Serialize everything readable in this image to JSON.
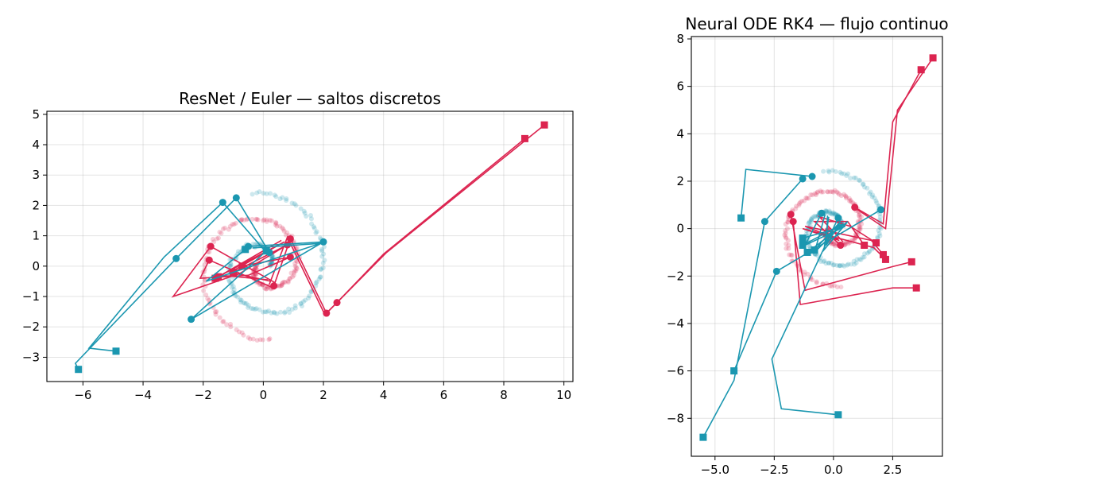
{
  "colors": {
    "class_a": "#1b97b0",
    "class_b": "#dc2450"
  },
  "chart_data": [
    {
      "type": "line",
      "title": "ResNet / Euler — saltos discretos",
      "xlabel": "",
      "ylabel": "",
      "xlim": [
        -7.2,
        10.3
      ],
      "ylim": [
        -3.8,
        5.1
      ],
      "xticks": [
        -6,
        -4,
        -2,
        0,
        2,
        4,
        6,
        8,
        10
      ],
      "xtick_labels": [
        "−6",
        "−4",
        "−2",
        "0",
        "2",
        "4",
        "6",
        "8",
        "10"
      ],
      "yticks": [
        -3,
        -2,
        -1,
        0,
        1,
        2,
        3,
        4,
        5
      ],
      "ytick_labels": [
        "−3",
        "−2",
        "−1",
        "0",
        "1",
        "2",
        "3",
        "4",
        "5"
      ],
      "grid": true,
      "spirals": [
        {
          "color": "class_a",
          "r0": 0.2,
          "r1": 2.45,
          "theta0": 0.0,
          "theta1": 8.0,
          "n": 170
        },
        {
          "color": "class_b",
          "r0": 0.2,
          "r1": 2.45,
          "theta0": 3.1416,
          "theta1": 11.1,
          "n": 170
        }
      ],
      "trajectories": [
        {
          "color": "class_b",
          "points": [
            [
              0.35,
              -0.65
            ],
            [
              0.9,
              0.9
            ],
            [
              2.1,
              -1.55
            ],
            [
              2.45,
              -1.2
            ],
            [
              4,
              0.4
            ],
            [
              8.7,
              4.2
            ]
          ],
          "markers": [
            [
              0.35,
              -0.65
            ],
            [
              0.9,
              0.9
            ],
            [
              2.1,
              -1.55
            ],
            [
              2.45,
              -1.2
            ],
            [
              8.7,
              4.2
            ]
          ]
        },
        {
          "color": "class_b",
          "points": [
            [
              0.2,
              -0.6
            ],
            [
              0.8,
              0.95
            ],
            [
              2.05,
              -1.6
            ],
            [
              2.4,
              -1.25
            ],
            [
              4.1,
              0.45
            ],
            [
              9.35,
              4.65
            ]
          ],
          "markers": [
            [
              9.35,
              4.65
            ]
          ]
        },
        {
          "color": "class_b",
          "points": [
            [
              0.3,
              -0.7
            ],
            [
              -1.8,
              0.2
            ],
            [
              -2.1,
              -0.4
            ],
            [
              -0.5,
              -0.3
            ],
            [
              0.9,
              0.3
            ],
            [
              -0.7,
              0
            ]
          ],
          "markers": [
            [
              -1.8,
              0.2
            ],
            [
              0.9,
              0.3
            ],
            [
              -0.7,
              0
            ]
          ]
        },
        {
          "color": "class_b",
          "points": [
            [
              0.4,
              -0.55
            ],
            [
              -1.75,
              0.65
            ],
            [
              -3,
              -1
            ],
            [
              -0.8,
              -0.25
            ],
            [
              0.8,
              0.7
            ],
            [
              -1,
              -0.2
            ]
          ],
          "markers": [
            [
              -1.75,
              0.65
            ],
            [
              0.8,
              0.7
            ],
            [
              -1,
              -0.2
            ]
          ]
        },
        {
          "color": "class_b",
          "points": [
            [
              0.15,
              -0.45
            ],
            [
              -1.4,
              -0.3
            ],
            [
              0.6,
              0.85
            ],
            [
              -1.5,
              -0.35
            ]
          ],
          "markers": [
            [
              -1.5,
              -0.35
            ]
          ]
        },
        {
          "color": "class_b",
          "points": [
            [
              0.25,
              -0.5
            ],
            [
              -1.1,
              -0.2
            ],
            [
              0.7,
              0.8
            ],
            [
              -1.6,
              -0.4
            ]
          ],
          "markers": [
            [
              -1.6,
              -0.4
            ]
          ]
        },
        {
          "color": "class_a",
          "points": [
            [
              0.2,
              0.45
            ],
            [
              -0.9,
              2.25
            ],
            [
              -2.9,
              0.25
            ],
            [
              -6.25,
              -3.2
            ],
            [
              -6.15,
              -3.4
            ]
          ],
          "markers": [
            [
              0.2,
              0.45
            ],
            [
              -0.9,
              2.25
            ],
            [
              -2.9,
              0.25
            ],
            [
              -6.15,
              -3.4
            ]
          ]
        },
        {
          "color": "class_a",
          "points": [
            [
              0.15,
              0.4
            ],
            [
              -1.35,
              2.1
            ],
            [
              -3.3,
              0.3
            ],
            [
              -5.8,
              -2.7
            ],
            [
              -4.9,
              -2.8
            ]
          ],
          "markers": [
            [
              -1.35,
              2.1
            ],
            [
              -4.9,
              -2.8
            ]
          ]
        },
        {
          "color": "class_a",
          "points": [
            [
              -0.5,
              0.65
            ],
            [
              2,
              0.8
            ],
            [
              -2.4,
              -1.75
            ],
            [
              0.1,
              0.5
            ]
          ],
          "markers": [
            [
              -0.5,
              0.65
            ],
            [
              2,
              0.8
            ],
            [
              -2.4,
              -1.75
            ],
            [
              0.1,
              0.5
            ]
          ]
        },
        {
          "color": "class_a",
          "points": [
            [
              -0.35,
              0.6
            ],
            [
              1.9,
              0.75
            ],
            [
              -1.9,
              -0.5
            ],
            [
              -0.6,
              0.55
            ]
          ],
          "markers": [
            [
              -0.6,
              0.55
            ]
          ]
        }
      ]
    },
    {
      "type": "line",
      "title": "Neural ODE RK4 — flujo continuo",
      "xlabel": "",
      "ylabel": "",
      "xlim": [
        -6.0,
        4.6
      ],
      "ylim": [
        -9.6,
        8.1
      ],
      "xticks": [
        -5,
        -2.5,
        0,
        2.5
      ],
      "xtick_labels": [
        "−5.0",
        "−2.5",
        "0.0",
        "2.5"
      ],
      "yticks": [
        -8,
        -6,
        -4,
        -2,
        0,
        2,
        4,
        6,
        8
      ],
      "ytick_labels": [
        "−8",
        "−6",
        "−4",
        "−2",
        "0",
        "2",
        "4",
        "6",
        "8"
      ],
      "grid": true,
      "spirals": [
        {
          "color": "class_a",
          "r0": 0.2,
          "r1": 2.45,
          "theta0": 0.0,
          "theta1": 8.0,
          "n": 170
        },
        {
          "color": "class_b",
          "r0": 0.2,
          "r1": 2.45,
          "theta0": 3.1416,
          "theta1": 11.1,
          "n": 170
        }
      ],
      "trajectories": [
        {
          "color": "class_b",
          "points": [
            [
              0.9,
              0.9
            ],
            [
              2.1,
              0.2
            ],
            [
              2.5,
              4.5
            ],
            [
              3.7,
              6.7
            ]
          ],
          "markers": [
            [
              0.9,
              0.9
            ],
            [
              3.7,
              6.7
            ]
          ]
        },
        {
          "color": "class_b",
          "points": [
            [
              0.8,
              0.95
            ],
            [
              2.2,
              0
            ],
            [
              2.7,
              5
            ],
            [
              4.2,
              7.2
            ]
          ],
          "markers": [
            [
              4.2,
              7.2
            ]
          ]
        },
        {
          "color": "class_b",
          "points": [
            [
              -1.7,
              0.3
            ],
            [
              -1.4,
              -3.2
            ],
            [
              2.5,
              -2.5
            ],
            [
              3.5,
              -2.5
            ]
          ],
          "markers": [
            [
              -1.7,
              0.3
            ],
            [
              3.5,
              -2.5
            ]
          ]
        },
        {
          "color": "class_b",
          "points": [
            [
              -1.8,
              0.6
            ],
            [
              -1.2,
              -2.6
            ],
            [
              2.5,
              -1.6
            ],
            [
              3.3,
              -1.4
            ]
          ],
          "markers": [
            [
              -1.8,
              0.6
            ],
            [
              3.3,
              -1.4
            ]
          ]
        },
        {
          "color": "class_b",
          "points": [
            [
              0.3,
              -0.7
            ],
            [
              -0.8,
              0.3
            ],
            [
              0.6,
              0.3
            ],
            [
              1.3,
              -0.7
            ]
          ],
          "markers": [
            [
              0.3,
              -0.7
            ],
            [
              1.3,
              -0.7
            ]
          ]
        },
        {
          "color": "class_b",
          "points": [
            [
              0.4,
              -0.55
            ],
            [
              -0.6,
              0.5
            ],
            [
              0.7,
              0.1
            ],
            [
              1.8,
              -0.6
            ]
          ],
          "markers": [
            [
              1.8,
              -0.6
            ]
          ]
        },
        {
          "color": "class_b",
          "points": [
            [
              0.2,
              -0.45
            ],
            [
              -1.2,
              0.1
            ],
            [
              1.6,
              -0.5
            ],
            [
              2.1,
              -1.1
            ]
          ],
          "markers": [
            [
              2.1,
              -1.1
            ]
          ]
        },
        {
          "color": "class_b",
          "points": [
            [
              0.25,
              -0.5
            ],
            [
              -1.3,
              0.0
            ],
            [
              1.7,
              -0.8
            ],
            [
              2.2,
              -1.3
            ]
          ],
          "markers": [
            [
              2.2,
              -1.3
            ]
          ]
        },
        {
          "color": "class_a",
          "points": [
            [
              -0.9,
              2.2
            ],
            [
              -3.7,
              2.5
            ],
            [
              -3.9,
              0.45
            ]
          ],
          "markers": [
            [
              -0.9,
              2.2
            ],
            [
              -3.9,
              0.45
            ]
          ]
        },
        {
          "color": "class_a",
          "points": [
            [
              -1.3,
              2.1
            ],
            [
              -2.9,
              0.3
            ],
            [
              -4.2,
              -6.4
            ],
            [
              -5.5,
              -8.8
            ]
          ],
          "markers": [
            [
              -1.3,
              2.1
            ],
            [
              -2.9,
              0.3
            ],
            [
              -5.5,
              -8.8
            ]
          ]
        },
        {
          "color": "class_a",
          "points": [
            [
              2,
              0.8
            ],
            [
              -2.4,
              -1.8
            ],
            [
              -4.2,
              -6
            ]
          ],
          "markers": [
            [
              2,
              0.8
            ],
            [
              -2.4,
              -1.8
            ],
            [
              -4.2,
              -6
            ]
          ]
        },
        {
          "color": "class_a",
          "points": [
            [
              0.2,
              0.45
            ],
            [
              -2.6,
              -5.5
            ],
            [
              -2.2,
              -7.6
            ],
            [
              0.2,
              -7.85
            ]
          ],
          "markers": [
            [
              0.2,
              0.45
            ],
            [
              0.2,
              -7.85
            ]
          ]
        },
        {
          "color": "class_a",
          "points": [
            [
              -0.5,
              0.65
            ],
            [
              -1.2,
              -0.7
            ],
            [
              0.5,
              0.1
            ],
            [
              -1.3,
              -0.4
            ]
          ],
          "markers": [
            [
              -0.5,
              0.65
            ],
            [
              -1.3,
              -0.4
            ]
          ]
        },
        {
          "color": "class_a",
          "points": [
            [
              -0.35,
              0.6
            ],
            [
              -0.8,
              -1.0
            ],
            [
              0.4,
              0.2
            ],
            [
              -1.3,
              -0.7
            ]
          ],
          "markers": [
            [
              -1.3,
              -0.7
            ]
          ]
        },
        {
          "color": "class_a",
          "points": [
            [
              -0.2,
              0.5
            ],
            [
              -0.4,
              -0.9
            ],
            [
              0.6,
              0.3
            ],
            [
              -1.1,
              -1.0
            ]
          ],
          "markers": [
            [
              -1.1,
              -1.0
            ]
          ]
        },
        {
          "color": "class_a",
          "points": [
            [
              -0.25,
              0.55
            ],
            [
              -0.3,
              -0.7
            ],
            [
              0.3,
              0.3
            ],
            [
              -0.8,
              -0.9
            ]
          ],
          "markers": [
            [
              -0.8,
              -0.9
            ]
          ]
        }
      ]
    }
  ]
}
